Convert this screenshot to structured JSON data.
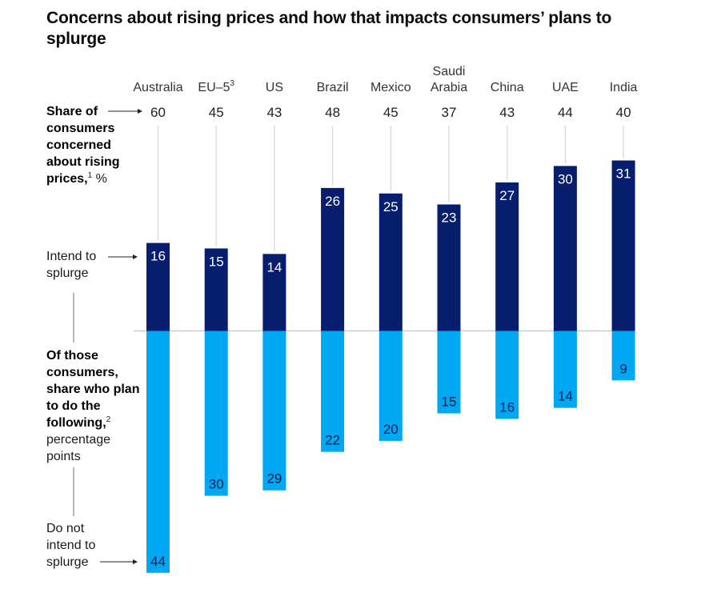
{
  "title": "Concerns about rising prices and how that impacts consumers’ plans to splurge",
  "side_labels": {
    "share_bold": "Share of consumers concerned about rising prices,",
    "share_sup": "1",
    "share_unit": " %",
    "intend": "Intend to splurge",
    "of_those_bold": "Of those consumers, share who plan to do the following,",
    "of_those_sup": "2",
    "of_those_unit": "percentage points",
    "do_not": "Do not intend to splurge"
  },
  "colors": {
    "intend": "#071d6e",
    "do_not": "#00a8f2",
    "baseline": "#cccccc",
    "connector": "#d6d6d6"
  },
  "chart_data": {
    "type": "bar",
    "title": "Concerns about rising prices and how that impacts consumers’ plans to splurge",
    "categories": [
      {
        "label": "Australia"
      },
      {
        "label": "EU–5",
        "sup": "3"
      },
      {
        "label": "US"
      },
      {
        "label": "Brazil"
      },
      {
        "label": "Mexico"
      },
      {
        "label": "Saudi Arabia",
        "lines": [
          "Saudi",
          "Arabia"
        ]
      },
      {
        "label": "China"
      },
      {
        "label": "UAE"
      },
      {
        "label": "India"
      }
    ],
    "share_concerned": [
      60,
      45,
      43,
      48,
      45,
      37,
      43,
      44,
      40
    ],
    "series": [
      {
        "name": "Intend to splurge",
        "direction": "up",
        "values": [
          16,
          15,
          14,
          26,
          25,
          23,
          27,
          30,
          31
        ]
      },
      {
        "name": "Do not intend to splurge",
        "direction": "down",
        "values": [
          44,
          30,
          29,
          22,
          20,
          15,
          16,
          14,
          9
        ]
      }
    ],
    "xlabel": "",
    "ylabel": "percentage points",
    "grid": false,
    "legend": "left-side labels"
  }
}
